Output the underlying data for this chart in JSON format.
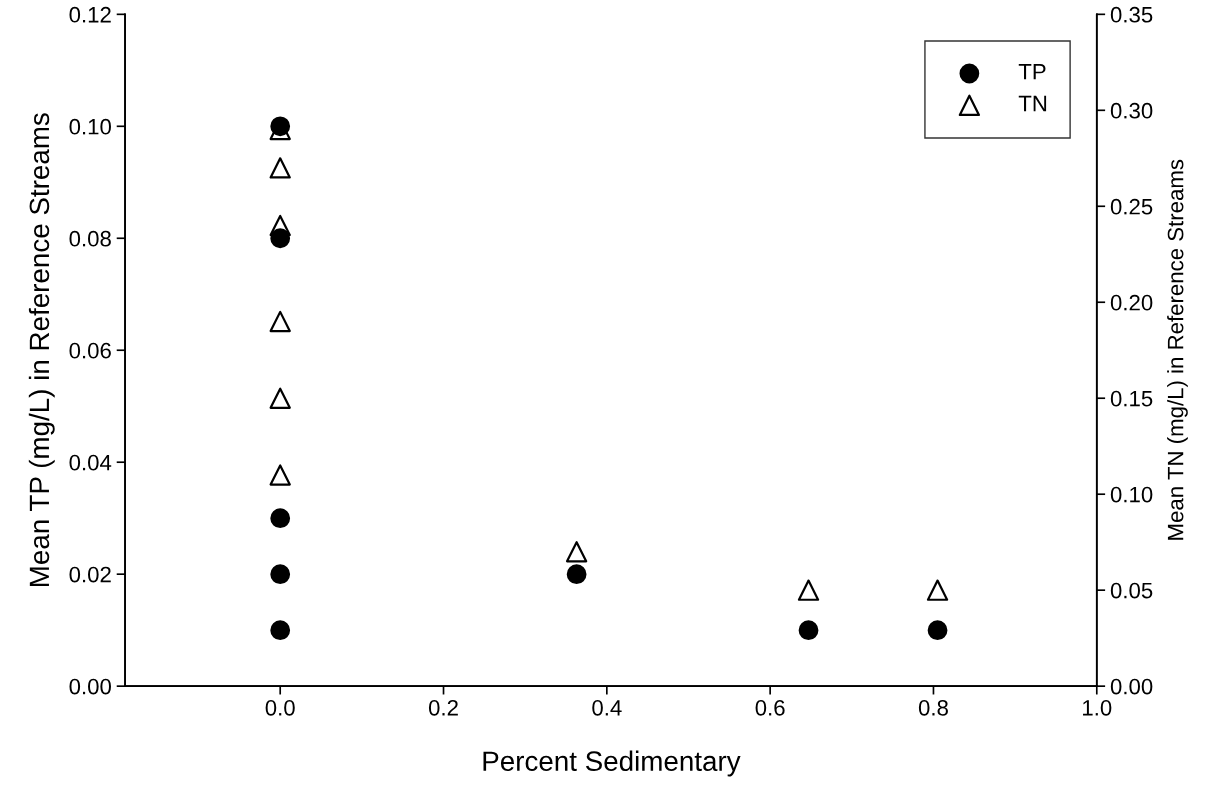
{
  "chart_data": {
    "type": "scatter",
    "xlabel": "Percent Sedimentary",
    "ylabel": "Mean TP (mg/L) in Reference Streams",
    "y2label": "Mean TN (mg/L) in Reference Streams",
    "xlim": [
      -0.19,
      1.0
    ],
    "xticks": [
      {
        "value": 0,
        "label": "0.0"
      },
      {
        "value": 0.2,
        "label": "0.2"
      },
      {
        "value": 0.4,
        "label": "0.4"
      },
      {
        "value": 0.6,
        "label": "0.6"
      },
      {
        "value": 0.8,
        "label": "0.8"
      },
      {
        "value": 1.0,
        "label": "1.0"
      }
    ],
    "ylim": [
      0,
      0.12
    ],
    "yticks": [
      {
        "value": 0,
        "label": "0.00"
      },
      {
        "value": 0.02,
        "label": "0.02"
      },
      {
        "value": 0.04,
        "label": "0.04"
      },
      {
        "value": 0.06,
        "label": "0.06"
      },
      {
        "value": 0.08,
        "label": "0.08"
      },
      {
        "value": 0.1,
        "label": "0.10"
      },
      {
        "value": 0.12,
        "label": "0.12"
      }
    ],
    "y2lim": [
      0,
      0.35
    ],
    "y2ticks": [
      {
        "value": 0,
        "label": "0.00"
      },
      {
        "value": 0.05,
        "label": "0.05"
      },
      {
        "value": 0.1,
        "label": "0.10"
      },
      {
        "value": 0.15,
        "label": "0.15"
      },
      {
        "value": 0.2,
        "label": "0.20"
      },
      {
        "value": 0.25,
        "label": "0.25"
      },
      {
        "value": 0.3,
        "label": "0.30"
      },
      {
        "value": 0.35,
        "label": "0.35"
      }
    ],
    "legend": "top right",
    "grid": false,
    "series": [
      {
        "name": "TP",
        "color": "#000000",
        "marker": "circle",
        "x": [
          0,
          0,
          0,
          0,
          0,
          0.363,
          0.647,
          0.805
        ],
        "values": [
          0.1,
          0.08,
          0.03,
          0.02,
          0.01,
          0.02,
          0.01,
          0.01
        ]
      },
      {
        "name": "TN",
        "color": "#000000",
        "marker": "triangle",
        "axis": "y2",
        "x": [
          0,
          0,
          0,
          0,
          0,
          0,
          0.363,
          0.647,
          0.805
        ],
        "values": [
          0.29,
          0.27,
          0.24,
          0.19,
          0.15,
          0.11,
          0.07,
          0.05,
          0.05
        ]
      }
    ]
  }
}
